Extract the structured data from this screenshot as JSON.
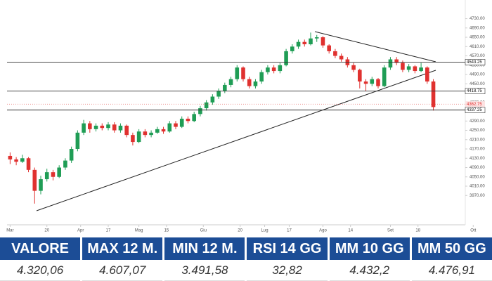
{
  "chart_data": {
    "type": "candlestick",
    "up_color": "#1f9d55",
    "down_color": "#e0312f",
    "ylim": [
      3850,
      4780
    ],
    "yticks": [
      {
        "value": 3970,
        "label": "3970.00"
      },
      {
        "value": 4010,
        "label": "4010.00"
      },
      {
        "value": 4050,
        "label": "4050.00"
      },
      {
        "value": 4090,
        "label": "4090.00"
      },
      {
        "value": 4130,
        "label": "4130.00"
      },
      {
        "value": 4170,
        "label": "4170.00"
      },
      {
        "value": 4210,
        "label": "4210.00"
      },
      {
        "value": 4250,
        "label": "4250.00"
      },
      {
        "value": 4290,
        "label": "4290.00"
      },
      {
        "value": 4330,
        "label": "4330.00"
      },
      {
        "value": 4370,
        "label": "4370.00"
      },
      {
        "value": 4410,
        "label": "4410.00"
      },
      {
        "value": 4450,
        "label": "4450.00"
      },
      {
        "value": 4490,
        "label": "4490.00"
      },
      {
        "value": 4530,
        "label": "4530.00"
      },
      {
        "value": 4570,
        "label": "4570.00"
      },
      {
        "value": 4610,
        "label": "4610.00"
      },
      {
        "value": 4650,
        "label": "4650.00"
      },
      {
        "value": 4690,
        "label": "4690.00"
      },
      {
        "value": 4730,
        "label": "4730.00"
      }
    ],
    "xlim": [
      -0.5,
      76.5
    ],
    "xticks": [
      {
        "value": 0,
        "label": "Mar"
      },
      {
        "value": 6,
        "label": "20"
      },
      {
        "value": 11.5,
        "label": "Apr"
      },
      {
        "value": 16,
        "label": "17"
      },
      {
        "value": 21,
        "label": "Mag"
      },
      {
        "value": 25.5,
        "label": "15"
      },
      {
        "value": 31.5,
        "label": "Giu"
      },
      {
        "value": 37.5,
        "label": "20"
      },
      {
        "value": 41.5,
        "label": "Lug"
      },
      {
        "value": 45.5,
        "label": "17"
      },
      {
        "value": 51,
        "label": "Ago"
      },
      {
        "value": 55.5,
        "label": "14"
      },
      {
        "value": 62,
        "label": "Set"
      },
      {
        "value": 66.5,
        "label": "18"
      },
      {
        "value": 75.5,
        "label": "Ott"
      }
    ],
    "levels": [
      4543.25,
      4418.75,
      4337.25
    ],
    "last_price": 4362.75,
    "ohlc": [
      [
        4140,
        4155,
        4105,
        4125
      ],
      [
        4125,
        4135,
        4100,
        4115
      ],
      [
        4115,
        4145,
        4110,
        4130
      ],
      [
        4130,
        4135,
        4070,
        4080
      ],
      [
        4080,
        4090,
        3935,
        3990
      ],
      [
        3990,
        4055,
        3975,
        4040
      ],
      [
        4040,
        4085,
        4030,
        4070
      ],
      [
        4070,
        4080,
        4035,
        4050
      ],
      [
        4050,
        4100,
        4045,
        4090
      ],
      [
        4090,
        4130,
        4080,
        4120
      ],
      [
        4120,
        4180,
        4110,
        4170
      ],
      [
        4170,
        4250,
        4160,
        4240
      ],
      [
        4240,
        4295,
        4230,
        4280
      ],
      [
        4280,
        4290,
        4240,
        4255
      ],
      [
        4255,
        4280,
        4245,
        4270
      ],
      [
        4270,
        4280,
        4250,
        4260
      ],
      [
        4260,
        4285,
        4250,
        4275
      ],
      [
        4275,
        4285,
        4240,
        4250
      ],
      [
        4250,
        4280,
        4240,
        4270
      ],
      [
        4270,
        4275,
        4220,
        4230
      ],
      [
        4230,
        4240,
        4185,
        4200
      ],
      [
        4200,
        4255,
        4195,
        4245
      ],
      [
        4245,
        4255,
        4220,
        4230
      ],
      [
        4230,
        4250,
        4220,
        4240
      ],
      [
        4240,
        4265,
        4235,
        4255
      ],
      [
        4255,
        4265,
        4235,
        4245
      ],
      [
        4245,
        4290,
        4240,
        4280
      ],
      [
        4280,
        4290,
        4255,
        4265
      ],
      [
        4265,
        4310,
        4260,
        4300
      ],
      [
        4300,
        4310,
        4280,
        4290
      ],
      [
        4290,
        4330,
        4285,
        4320
      ],
      [
        4320,
        4355,
        4310,
        4345
      ],
      [
        4345,
        4380,
        4335,
        4370
      ],
      [
        4370,
        4405,
        4360,
        4395
      ],
      [
        4395,
        4430,
        4385,
        4420
      ],
      [
        4420,
        4455,
        4410,
        4445
      ],
      [
        4445,
        4480,
        4435,
        4470
      ],
      [
        4470,
        4530,
        4460,
        4520
      ],
      [
        4520,
        4525,
        4460,
        4470
      ],
      [
        4470,
        4480,
        4430,
        4440
      ],
      [
        4440,
        4470,
        4430,
        4460
      ],
      [
        4460,
        4510,
        4450,
        4500
      ],
      [
        4500,
        4530,
        4490,
        4520
      ],
      [
        4520,
        4530,
        4495,
        4505
      ],
      [
        4505,
        4540,
        4495,
        4530
      ],
      [
        4530,
        4600,
        4525,
        4590
      ],
      [
        4590,
        4620,
        4580,
        4610
      ],
      [
        4610,
        4640,
        4600,
        4630
      ],
      [
        4630,
        4640,
        4610,
        4620
      ],
      [
        4620,
        4670,
        4615,
        4645
      ],
      [
        4645,
        4660,
        4630,
        4650
      ],
      [
        4650,
        4655,
        4605,
        4615
      ],
      [
        4615,
        4620,
        4580,
        4590
      ],
      [
        4590,
        4600,
        4560,
        4570
      ],
      [
        4570,
        4580,
        4545,
        4555
      ],
      [
        4555,
        4565,
        4520,
        4530
      ],
      [
        4530,
        4540,
        4500,
        4510
      ],
      [
        4510,
        4515,
        4430,
        4460
      ],
      [
        4460,
        4470,
        4420,
        4450
      ],
      [
        4450,
        4480,
        4440,
        4470
      ],
      [
        4470,
        4475,
        4430,
        4440
      ],
      [
        4440,
        4530,
        4435,
        4520
      ],
      [
        4520,
        4565,
        4510,
        4555
      ],
      [
        4555,
        4565,
        4530,
        4540
      ],
      [
        4540,
        4550,
        4500,
        4510
      ],
      [
        4510,
        4535,
        4500,
        4525
      ],
      [
        4525,
        4530,
        4495,
        4505
      ],
      [
        4505,
        4540,
        4500,
        4520
      ],
      [
        4520,
        4525,
        4450,
        4460
      ],
      [
        4460,
        4470,
        4335,
        4350
      ]
    ]
  },
  "table": {
    "headers": [
      "VALORE",
      "MAX 12 M.",
      "MIN 12 M.",
      "RSI 14 GG",
      "MM 10 GG",
      "MM 50 GG"
    ],
    "values": [
      "4.320,06",
      "4.607,07",
      "3.491,58",
      "32,82",
      "4.432,2",
      "4.476,91"
    ]
  }
}
